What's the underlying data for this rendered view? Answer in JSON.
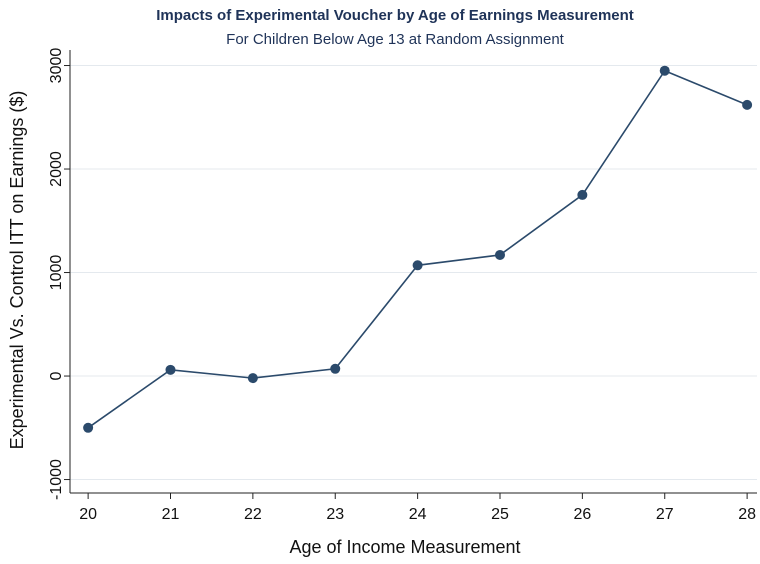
{
  "chart_data": {
    "type": "line",
    "title": "Impacts of Experimental Voucher by Age of Earnings Measurement",
    "subtitle": "For Children Below Age 13 at Random Assignment",
    "x_label": "Age of Income Measurement",
    "y_label": "Experimental Vs. Control ITT on Earnings ($)",
    "x": [
      20,
      21,
      22,
      23,
      24,
      25,
      26,
      27,
      28
    ],
    "series": [
      {
        "name": "ITT",
        "color": "#2b4a6b",
        "values": [
          -500,
          60,
          -20,
          70,
          1070,
          1170,
          1750,
          2950,
          2620
        ]
      }
    ],
    "xlim": [
      19.78,
      28.12
    ],
    "xticks": [
      20,
      21,
      22,
      23,
      24,
      25,
      26,
      27,
      28
    ],
    "ylim": [
      -1130,
      3150
    ],
    "yticks": [
      {
        "value": -1000,
        "label": "-1000"
      },
      0,
      1000,
      2000,
      3000
    ],
    "grid": true
  }
}
